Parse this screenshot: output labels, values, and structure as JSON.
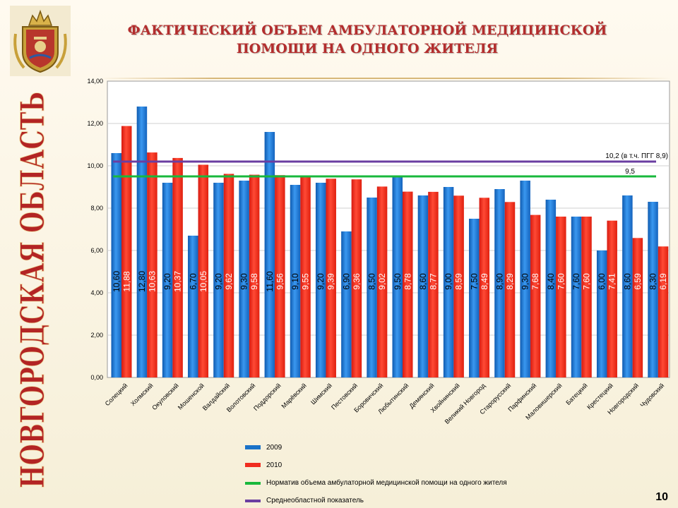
{
  "sidebar": {
    "vertical_title": "НОВГОРОДСКАЯ ОБЛАСТЬ"
  },
  "header": {
    "title_line1": "ФАКТИЧЕСКИЙ ОБЪЕМ АМБУЛАТОРНОЙ МЕДИЦИНСКОЙ",
    "title_line2": "ПОМОЩИ НА ОДНОГО ЖИТЕЛЯ"
  },
  "page_number": "10",
  "colors": {
    "series_2009": "#1a72c8",
    "series_2010": "#f02d1f",
    "norm": "#19b83c",
    "avg": "#6a3ea1"
  },
  "chart_data": {
    "type": "bar",
    "ylim": [
      0,
      14
    ],
    "yticks": [
      "0,00",
      "2,00",
      "4,00",
      "6,00",
      "8,00",
      "10,00",
      "12,00",
      "14,00"
    ],
    "grid": true,
    "legend_position": "bottom",
    "categories": [
      "Солецкий",
      "Холмский",
      "Окуловский",
      "Мошенской",
      "Валдайский",
      "Волотовский",
      "Поддорский",
      "Марёвский",
      "Шимский",
      "Пестовский",
      "Боровичский",
      "Любытинский",
      "Демянский",
      "Хвойнинский",
      "Великий Новгород",
      "Старорусский",
      "Парфинский",
      "Маловишерский",
      "Батецкий",
      "Крестецкий",
      "Новгородский",
      "Чудовский"
    ],
    "series": [
      {
        "name": "2009",
        "values": [
          10.6,
          12.8,
          9.2,
          6.7,
          9.2,
          9.3,
          11.6,
          9.1,
          9.2,
          6.9,
          8.5,
          9.5,
          8.6,
          9.0,
          7.5,
          8.9,
          9.3,
          8.4,
          7.6,
          6.0,
          8.6,
          8.3
        ],
        "labels": [
          "10,60",
          "12,80",
          "9,20",
          "6,70",
          "9,20",
          "9,30",
          "11,60",
          "9,10",
          "9,20",
          "6,90",
          "8,50",
          "9,50",
          "8,60",
          "9,00",
          "7,50",
          "8,90",
          "9,30",
          "8,40",
          "7,60",
          "6,00",
          "8,60",
          "8,30"
        ]
      },
      {
        "name": "2010",
        "values": [
          11.88,
          10.63,
          10.37,
          10.05,
          9.62,
          9.58,
          9.56,
          9.55,
          9.39,
          9.36,
          9.02,
          8.78,
          8.77,
          8.59,
          8.49,
          8.29,
          7.68,
          7.6,
          7.6,
          7.41,
          6.59,
          6.19
        ],
        "labels": [
          "11,88",
          "10,63",
          "10,37",
          "10,05",
          "9,62",
          "9,58",
          "9,56",
          "9,55",
          "9,39",
          "9,36",
          "9,02",
          "8,78",
          "8,77",
          "8,59",
          "8,49",
          "8,29",
          "7,68",
          "7,60",
          "7,60",
          "7,41",
          "6,59",
          "6,19"
        ]
      }
    ],
    "reference_lines": [
      {
        "name": "Норматив объема амбулаторной медицинской помощи на одного жителя",
        "value": 9.5,
        "label": "9,5"
      },
      {
        "name": "Среднеобластной показатель",
        "value": 10.2,
        "label": "10,2  (в т.ч. ПГГ 8,9)"
      }
    ]
  }
}
